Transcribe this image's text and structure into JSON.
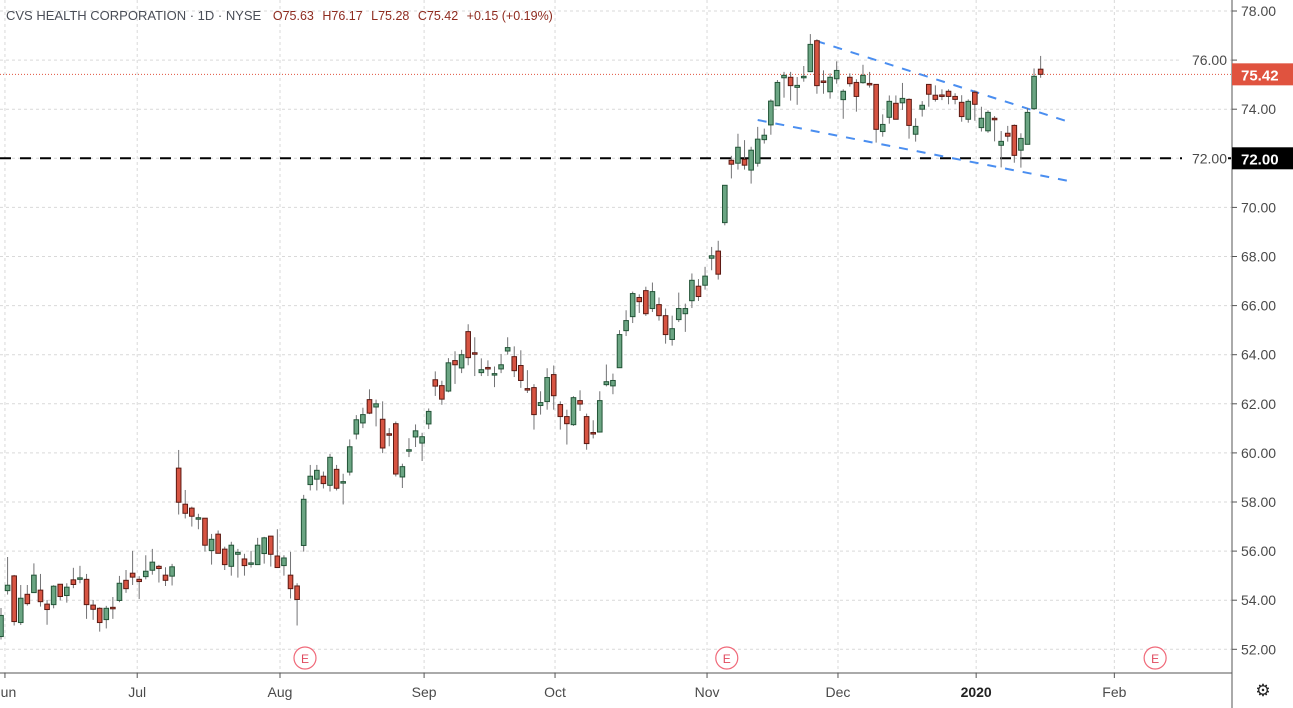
{
  "header": {
    "title": "CVS HEALTH CORPORATION · 1D · NYSE",
    "open": "O75.63",
    "high": "H76.17",
    "low": "L75.28",
    "close": "C75.42",
    "change": "+0.15 (+0.19%)"
  },
  "settings_icon": "gear-icon",
  "colors": {
    "up_fill": "#6ba583",
    "up_border": "#225437",
    "down_fill": "#d75442",
    "down_border": "#5b1a13",
    "wick": "#737375",
    "trendline": "#4a8ef0",
    "last_price": "#e0533f",
    "hline": "#000000",
    "grid": "#d9d9d9"
  },
  "chart_data": {
    "type": "candlestick",
    "symbol": "CVS",
    "interval": "1D",
    "exchange": "NYSE",
    "ylim": [
      51.4,
      78.45
    ],
    "xlim": [
      -0.2,
      186.8
    ],
    "grid": true,
    "y_ticks": [
      "78.00",
      "76.00",
      "74.00",
      "72.00",
      "70.00",
      "68.00",
      "66.00",
      "64.00",
      "62.00",
      "60.00",
      "58.00",
      "56.00",
      "54.00",
      "52.00"
    ],
    "x_ticks": [
      {
        "label": "Jun",
        "bar": 0.6,
        "bold": false
      },
      {
        "label": "Jul",
        "bar": 20.7,
        "bold": false
      },
      {
        "label": "Aug",
        "bar": 42.4,
        "bold": false
      },
      {
        "label": "Sep",
        "bar": 64.3,
        "bold": false
      },
      {
        "label": "Oct",
        "bar": 84.2,
        "bold": false
      },
      {
        "label": "Nov",
        "bar": 107.3,
        "bold": false
      },
      {
        "label": "Dec",
        "bar": 127.2,
        "bold": false
      },
      {
        "label": "2020",
        "bar": 148.2,
        "bold": true
      },
      {
        "label": "Feb",
        "bar": 169.2,
        "bold": false
      }
    ],
    "earnings_markers": [
      {
        "label": "E",
        "bar": 46.2
      },
      {
        "label": "E",
        "bar": 110.3
      },
      {
        "label": "E",
        "bar": 175.4
      }
    ],
    "last_price": {
      "value": 75.42,
      "label": "75.42"
    },
    "horizontal_line": {
      "value": 72.0,
      "label": "72.00"
    },
    "trendlines": [
      {
        "name": "upper",
        "from": [
          123.9,
          76.78
        ],
        "to": [
          162.8,
          73.44
        ]
      },
      {
        "name": "lower",
        "from": [
          115.0,
          73.56
        ],
        "to": [
          162.2,
          71.08
        ]
      }
    ],
    "ohlc_fields": [
      "open",
      "high",
      "low",
      "close"
    ],
    "candles": [
      [
        52.52,
        53.68,
        52.4,
        53.38
      ],
      [
        54.39,
        55.76,
        54.23,
        54.61
      ],
      [
        54.99,
        55.03,
        52.97,
        53.13
      ],
      [
        53.09,
        54.62,
        52.99,
        54.08
      ],
      [
        54.24,
        54.62,
        53.78,
        53.86
      ],
      [
        54.31,
        55.5,
        54.31,
        55.02
      ],
      [
        54.41,
        55.07,
        53.74,
        53.94
      ],
      [
        53.84,
        54.01,
        53.0,
        53.62
      ],
      [
        53.82,
        54.61,
        53.67,
        54.57
      ],
      [
        54.65,
        54.65,
        53.99,
        54.15
      ],
      [
        54.19,
        54.69,
        53.9,
        54.53
      ],
      [
        54.83,
        55.32,
        54.49,
        54.64
      ],
      [
        54.85,
        55.4,
        54.69,
        54.91
      ],
      [
        54.85,
        55.07,
        53.24,
        53.82
      ],
      [
        53.8,
        54.01,
        53.2,
        53.63
      ],
      [
        53.67,
        53.71,
        52.72,
        53.09
      ],
      [
        53.21,
        53.77,
        52.85,
        53.67
      ],
      [
        53.71,
        54.13,
        53.24,
        53.66
      ],
      [
        53.99,
        54.99,
        53.92,
        54.69
      ],
      [
        54.81,
        55.23,
        54.3,
        54.47
      ],
      [
        55.1,
        56.01,
        54.62,
        54.94
      ],
      [
        54.85,
        54.98,
        54.05,
        54.76
      ],
      [
        54.96,
        55.83,
        54.85,
        55.18
      ],
      [
        55.22,
        56.09,
        55.04,
        55.55
      ],
      [
        55.38,
        55.44,
        54.72,
        55.29
      ],
      [
        55.02,
        55.34,
        54.58,
        54.81
      ],
      [
        54.98,
        55.48,
        54.6,
        55.36
      ],
      [
        59.38,
        60.12,
        57.49,
        57.99
      ],
      [
        57.91,
        58.49,
        57.33,
        57.54
      ],
      [
        57.75,
        57.81,
        57.0,
        57.42
      ],
      [
        57.34,
        57.52,
        56.89,
        57.36
      ],
      [
        57.34,
        57.34,
        55.98,
        56.24
      ],
      [
        56.02,
        56.7,
        55.45,
        56.48
      ],
      [
        56.69,
        56.84,
        55.91,
        55.91
      ],
      [
        56.08,
        56.18,
        55.23,
        55.45
      ],
      [
        55.38,
        56.38,
        55.0,
        56.24
      ],
      [
        55.87,
        56.09,
        54.92,
        55.95
      ],
      [
        55.68,
        55.89,
        55.0,
        55.41
      ],
      [
        55.5,
        56.01,
        55.33,
        55.52
      ],
      [
        55.45,
        56.54,
        55.45,
        56.24
      ],
      [
        55.9,
        56.58,
        55.49,
        56.54
      ],
      [
        56.61,
        56.61,
        55.37,
        55.87
      ],
      [
        55.8,
        56.89,
        55.33,
        55.33
      ],
      [
        55.41,
        55.83,
        55.0,
        55.72
      ],
      [
        55.02,
        55.97,
        54.07,
        54.47
      ],
      [
        54.58,
        54.69,
        52.97,
        54.03
      ],
      [
        56.23,
        58.29,
        55.98,
        58.11
      ],
      [
        58.71,
        59.51,
        58.47,
        59.05
      ],
      [
        58.93,
        59.51,
        58.47,
        59.29
      ],
      [
        59.05,
        59.24,
        58.55,
        58.75
      ],
      [
        58.68,
        59.96,
        58.43,
        59.82
      ],
      [
        59.33,
        59.51,
        58.47,
        58.56
      ],
      [
        58.81,
        59.15,
        57.9,
        58.83
      ],
      [
        59.22,
        60.55,
        59.08,
        60.25
      ],
      [
        60.77,
        61.54,
        60.55,
        61.35
      ],
      [
        61.22,
        61.84,
        61.01,
        61.56
      ],
      [
        62.17,
        62.59,
        61.58,
        61.62
      ],
      [
        61.87,
        62.17,
        61.08,
        62.0
      ],
      [
        61.37,
        62.1,
        59.99,
        60.2
      ],
      [
        60.78,
        61.01,
        60.27,
        60.74
      ],
      [
        61.19,
        61.28,
        59.04,
        59.14
      ],
      [
        59.02,
        59.56,
        58.57,
        59.44
      ],
      [
        60.08,
        60.6,
        59.83,
        60.13
      ],
      [
        60.65,
        61.16,
        60.24,
        60.9
      ],
      [
        60.4,
        60.82,
        59.67,
        60.66
      ],
      [
        61.18,
        61.81,
        60.97,
        61.69
      ],
      [
        62.98,
        63.32,
        62.32,
        62.72
      ],
      [
        62.74,
        62.94,
        61.96,
        62.19
      ],
      [
        62.52,
        63.86,
        62.47,
        63.67
      ],
      [
        63.76,
        64.14,
        62.81,
        63.59
      ],
      [
        63.46,
        64.2,
        63.25,
        64.0
      ],
      [
        64.94,
        65.24,
        63.57,
        63.88
      ],
      [
        64.08,
        64.71,
        63.13,
        64.04
      ],
      [
        63.27,
        63.85,
        63.13,
        63.39
      ],
      [
        63.48,
        63.77,
        63.13,
        63.46
      ],
      [
        63.19,
        63.52,
        62.68,
        63.23
      ],
      [
        63.42,
        64.03,
        63.25,
        63.59
      ],
      [
        64.15,
        64.71,
        64.0,
        64.29
      ],
      [
        63.92,
        64.34,
        63.09,
        63.35
      ],
      [
        63.56,
        64.18,
        62.65,
        62.95
      ],
      [
        62.62,
        63.37,
        62.44,
        62.58
      ],
      [
        62.66,
        62.8,
        60.95,
        61.56
      ],
      [
        61.93,
        62.51,
        61.56,
        62.05
      ],
      [
        62.09,
        63.45,
        61.76,
        63.07
      ],
      [
        63.19,
        63.56,
        61.76,
        62.33
      ],
      [
        61.97,
        62.1,
        60.95,
        61.48
      ],
      [
        61.48,
        61.76,
        60.34,
        61.19
      ],
      [
        61.15,
        62.31,
        61.1,
        62.25
      ],
      [
        62.13,
        62.55,
        61.71,
        61.99
      ],
      [
        61.48,
        61.6,
        60.13,
        60.38
      ],
      [
        60.83,
        61.33,
        60.59,
        60.79
      ],
      [
        60.85,
        62.51,
        60.83,
        62.13
      ],
      [
        62.78,
        63.6,
        62.71,
        62.9
      ],
      [
        62.73,
        63.23,
        62.39,
        62.95
      ],
      [
        63.47,
        65.0,
        63.47,
        64.82
      ],
      [
        64.98,
        65.81,
        64.76,
        65.39
      ],
      [
        65.55,
        66.57,
        65.29,
        66.49
      ],
      [
        66.33,
        66.46,
        65.7,
        66.16
      ],
      [
        66.61,
        66.77,
        65.58,
        65.67
      ],
      [
        65.88,
        66.94,
        65.74,
        66.57
      ],
      [
        66.04,
        66.33,
        65.39,
        65.59
      ],
      [
        65.59,
        65.88,
        64.45,
        64.82
      ],
      [
        64.62,
        65.59,
        64.37,
        65.06
      ],
      [
        65.43,
        66.53,
        65.33,
        65.88
      ],
      [
        65.67,
        66.08,
        64.93,
        65.88
      ],
      [
        66.2,
        67.31,
        65.9,
        67.03
      ],
      [
        66.79,
        67.08,
        66.19,
        66.37
      ],
      [
        66.83,
        67.58,
        66.65,
        67.2
      ],
      [
        67.93,
        68.39,
        67.44,
        68.03
      ],
      [
        68.22,
        68.64,
        67.06,
        67.28
      ],
      [
        69.38,
        70.9,
        69.27,
        70.9
      ],
      [
        71.92,
        72.1,
        71.18,
        71.76
      ],
      [
        71.8,
        73.0,
        71.54,
        72.45
      ],
      [
        71.96,
        72.74,
        71.54,
        71.72
      ],
      [
        71.52,
        72.47,
        70.97,
        72.33
      ],
      [
        71.8,
        73.28,
        71.66,
        72.78
      ],
      [
        72.76,
        73.21,
        72.6,
        72.94
      ],
      [
        73.36,
        74.4,
        72.96,
        74.33
      ],
      [
        74.14,
        75.19,
        74.14,
        75.09
      ],
      [
        75.28,
        75.52,
        74.47,
        75.38
      ],
      [
        75.3,
        75.52,
        74.35,
        74.96
      ],
      [
        74.89,
        75.31,
        74.18,
        74.97
      ],
      [
        75.3,
        75.76,
        75.12,
        75.34
      ],
      [
        75.53,
        77.06,
        75.53,
        76.64
      ],
      [
        76.79,
        76.85,
        74.63,
        74.96
      ],
      [
        75.15,
        75.58,
        74.63,
        75.1
      ],
      [
        74.71,
        75.46,
        74.43,
        75.3
      ],
      [
        75.24,
        75.95,
        75.04,
        75.58
      ],
      [
        74.39,
        74.81,
        73.61,
        74.73
      ],
      [
        75.3,
        75.46,
        74.92,
        75.04
      ],
      [
        75.09,
        75.22,
        73.9,
        74.52
      ],
      [
        75.08,
        75.81,
        75.04,
        75.38
      ],
      [
        75.05,
        75.52,
        74.88,
        75.01
      ],
      [
        75.01,
        75.01,
        72.64,
        73.18
      ],
      [
        73.09,
        73.79,
        72.88,
        73.38
      ],
      [
        73.67,
        74.56,
        73.41,
        74.32
      ],
      [
        74.24,
        74.56,
        73.59,
        73.59
      ],
      [
        74.26,
        75.07,
        73.97,
        74.44
      ],
      [
        74.4,
        74.44,
        72.8,
        73.34
      ],
      [
        72.98,
        73.63,
        72.68,
        73.3
      ],
      [
        74.0,
        74.33,
        73.7,
        74.16
      ],
      [
        75.01,
        75.01,
        74.1,
        74.61
      ],
      [
        74.57,
        74.97,
        74.31,
        74.4
      ],
      [
        74.58,
        74.81,
        74.37,
        74.55
      ],
      [
        74.73,
        74.81,
        74.2,
        74.52
      ],
      [
        74.52,
        74.65,
        74.2,
        74.4
      ],
      [
        74.28,
        74.57,
        73.49,
        73.7
      ],
      [
        73.59,
        74.4,
        73.45,
        74.32
      ],
      [
        74.69,
        74.77,
        73.53,
        74.2
      ],
      [
        73.25,
        74.1,
        73.09,
        73.63
      ],
      [
        73.12,
        73.95,
        73.04,
        73.87
      ],
      [
        73.63,
        73.72,
        72.69,
        73.57
      ],
      [
        72.53,
        73.11,
        71.63,
        72.69
      ],
      [
        73.02,
        73.32,
        72.68,
        72.9
      ],
      [
        73.34,
        73.38,
        71.82,
        72.12
      ],
      [
        72.33,
        73.02,
        71.62,
        72.81
      ],
      [
        72.57,
        74.04,
        72.57,
        73.87
      ],
      [
        74.02,
        75.66,
        73.97,
        75.34
      ],
      [
        75.63,
        76.17,
        75.28,
        75.42
      ]
    ]
  }
}
